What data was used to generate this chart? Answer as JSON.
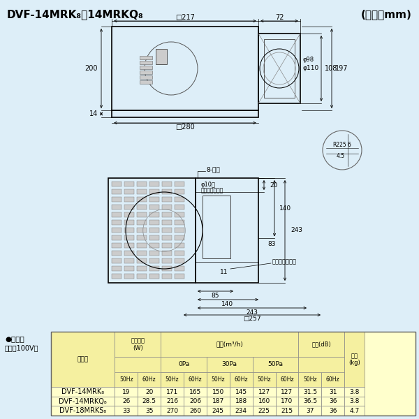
{
  "bg_color": "#ddeef8",
  "title": "DVF-14MRK₈・14MRKQ₈",
  "unit_label": "(単位：mm)",
  "table_title": "●特性表",
  "table_subtitle": "＼単相100V］",
  "table_bg": "#ffffcc",
  "table_header_bg": "#f5f0a0",
  "rows": [
    [
      "DVF-14MRK₈",
      "19",
      "20",
      "171",
      "165",
      "150",
      "145",
      "127",
      "127",
      "31.5",
      "31",
      "3.8"
    ],
    [
      "DVF-14MRKQ₈",
      "26",
      "28.5",
      "216",
      "206",
      "187",
      "188",
      "160",
      "170",
      "36.5",
      "36",
      "3.8"
    ],
    [
      "DVF-18MRKS₈",
      "33",
      "35",
      "270",
      "260",
      "245",
      "234",
      "225",
      "215",
      "37",
      "36",
      "4.7"
    ]
  ]
}
